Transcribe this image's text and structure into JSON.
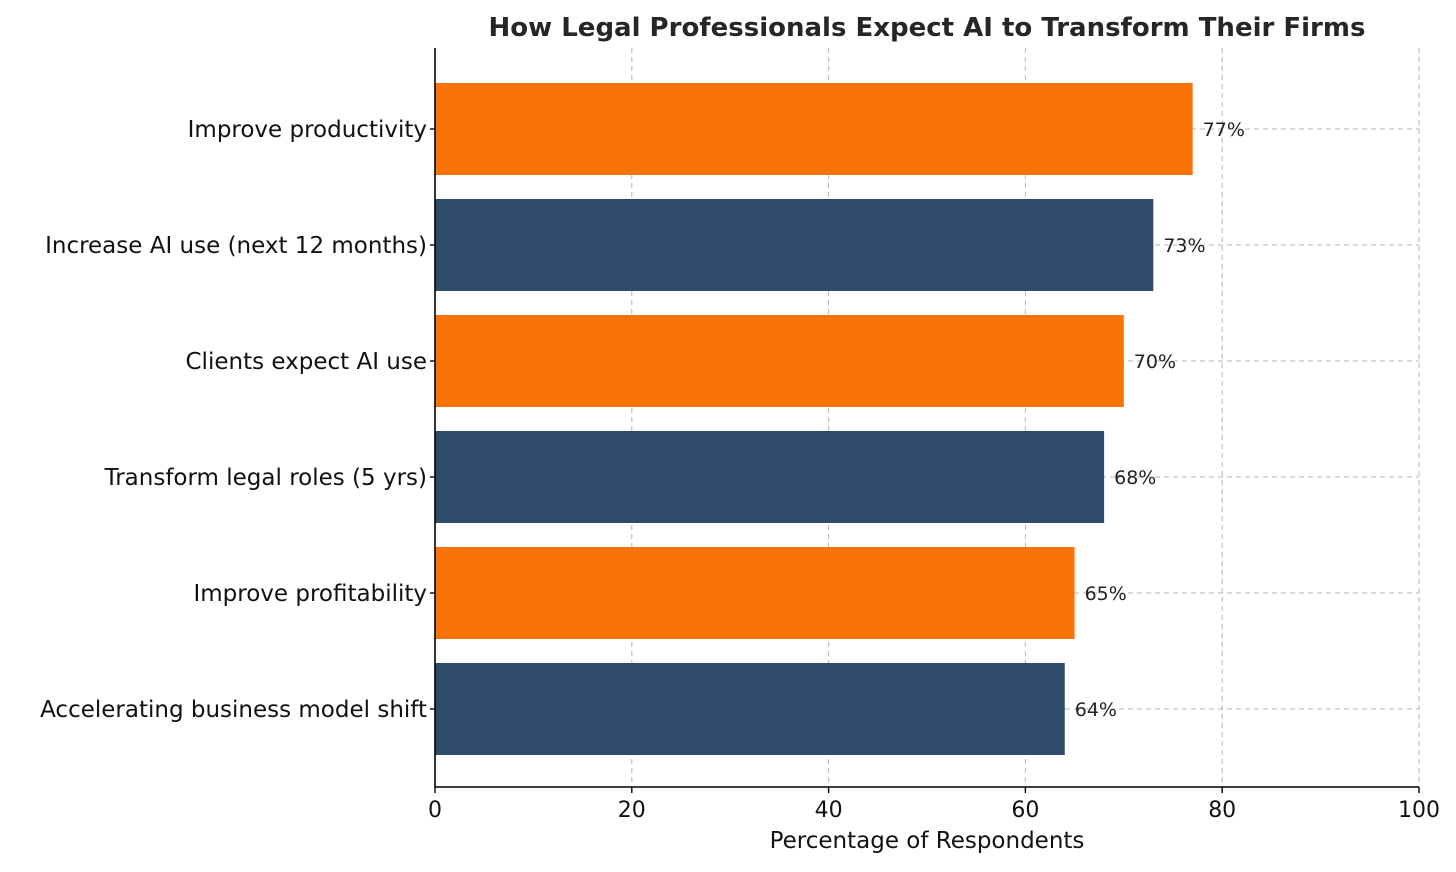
{
  "chart_data": {
    "type": "bar",
    "orientation": "horizontal",
    "title": "How Legal Professionals Expect AI to Transform Their Firms",
    "xlabel": "Percentage of Respondents",
    "ylabel": "",
    "xlim": [
      0,
      100
    ],
    "xticks": [
      0,
      20,
      40,
      60,
      80,
      100
    ],
    "grid": true,
    "categories": [
      "Improve productivity",
      "Increase AI use (next 12 months)",
      "Clients expect AI use",
      "Transform legal roles (5 yrs)",
      "Improve profitability",
      "Accelerating business model shift"
    ],
    "values": [
      77,
      73,
      70,
      68,
      65,
      64
    ],
    "value_labels": [
      "77%",
      "73%",
      "70%",
      "68%",
      "65%",
      "64%"
    ],
    "bar_colors": [
      "#f97306",
      "#2f4b6c",
      "#f97306",
      "#2f4b6c",
      "#f97306",
      "#2f4b6c"
    ]
  }
}
